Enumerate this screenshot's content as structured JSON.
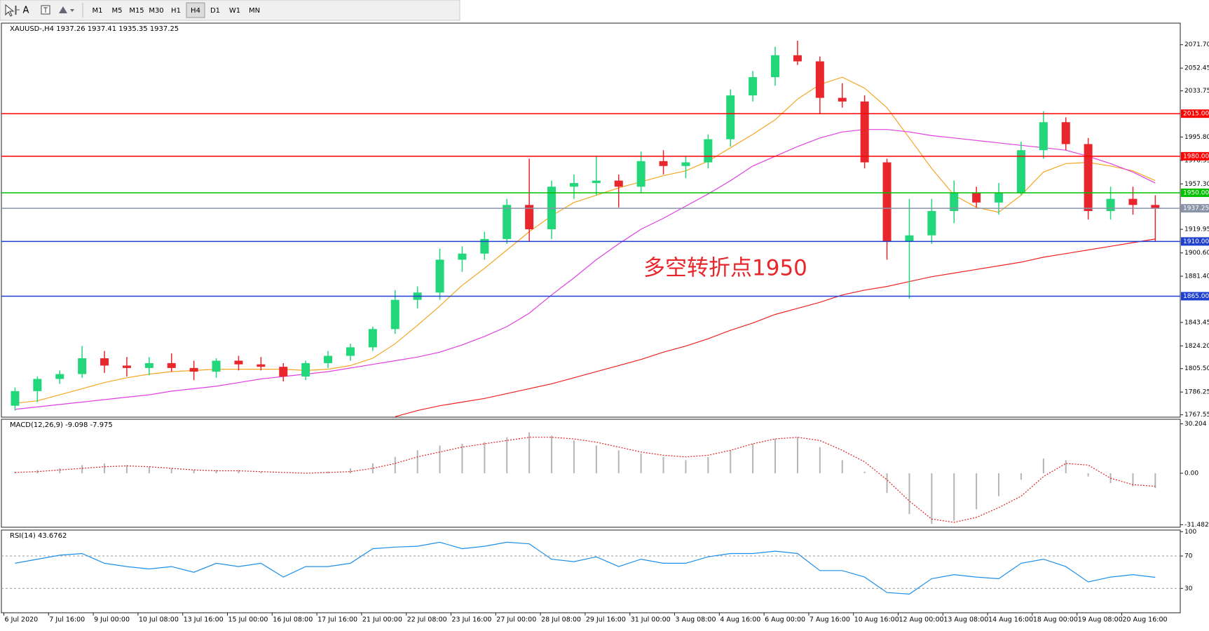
{
  "toolbar": {
    "text_tool": "A",
    "timeframes": [
      "M1",
      "M5",
      "M15",
      "M30",
      "H1",
      "H4",
      "D1",
      "W1",
      "MN"
    ],
    "selected": 5
  },
  "chart_data": [
    {
      "type": "candlestick",
      "title": "XAUUSD-,H4  1937.26 1937.41 1935.35 1937.25",
      "annotation": "多空转折点1950",
      "up_color": "#22d67a",
      "down_color": "#e8262c",
      "categories": [
        "6 Jul 2020",
        null,
        "7 Jul 16:00",
        null,
        "9 Jul 00:00",
        null,
        "10 Jul 08:00",
        null,
        "13 Jul 16:00",
        null,
        "15 Jul 00:00",
        null,
        "16 Jul 08:00",
        null,
        "17 Jul 16:00",
        null,
        "21 Jul 00:00",
        null,
        "22 Jul 08:00",
        null,
        "23 Jul 16:00",
        null,
        "27 Jul 00:00",
        null,
        "28 Jul 08:00",
        null,
        "29 Jul 16:00",
        null,
        "31 Jul 00:00",
        null,
        "3 Aug 08:00",
        null,
        "4 Aug 16:00",
        null,
        "6 Aug 00:00",
        null,
        "7 Aug 16:00",
        null,
        "10 Aug 16:00",
        null,
        "12 Aug 00:00",
        null,
        "13 Aug 08:00",
        null,
        "14 Aug 16:00",
        null,
        "18 Aug 00:00",
        null,
        "19 Aug 08:00",
        null,
        "20 Aug 16:00",
        null
      ],
      "open": [
        1775,
        1787,
        1797,
        1801,
        1814,
        1808,
        1806,
        1810,
        1806,
        1803,
        1812,
        1809,
        1807,
        1799,
        1810,
        1816,
        1823,
        1838,
        1862,
        1868,
        1895,
        1900,
        1912,
        1940,
        1920,
        1955,
        1958,
        1960,
        1955,
        1976,
        1972,
        1975,
        1994,
        2030,
        2045,
        2063,
        2058,
        2028,
        2025,
        1975,
        1910,
        1915,
        1935,
        1950,
        1942,
        1950,
        1985,
        2008,
        1990,
        1935,
        1945,
        1940
      ],
      "high": [
        1790,
        1799,
        1804,
        1824,
        1820,
        1815,
        1815,
        1818,
        1812,
        1814,
        1816,
        1815,
        1810,
        1812,
        1820,
        1826,
        1840,
        1870,
        1873,
        1904,
        1906,
        1918,
        1945,
        1978,
        1960,
        1965,
        1980,
        1965,
        1984,
        1985,
        1980,
        1998,
        2035,
        2050,
        2070,
        2075,
        2062,
        2040,
        2030,
        1978,
        1945,
        1945,
        1960,
        1955,
        1958,
        1992,
        2017,
        2012,
        1995,
        1955,
        1955,
        1948
      ],
      "low": [
        1771,
        1778,
        1793,
        1798,
        1802,
        1799,
        1800,
        1803,
        1796,
        1798,
        1804,
        1804,
        1795,
        1796,
        1806,
        1812,
        1820,
        1834,
        1855,
        1862,
        1885,
        1895,
        1908,
        1910,
        1912,
        1945,
        1948,
        1938,
        1950,
        1965,
        1962,
        1970,
        1988,
        2025,
        2038,
        2055,
        2015,
        2020,
        1970,
        1895,
        1863,
        1908,
        1925,
        1938,
        1932,
        1948,
        1978,
        1985,
        1928,
        1928,
        1932,
        1910
      ],
      "close": [
        1787,
        1797,
        1801,
        1814,
        1808,
        1806,
        1810,
        1806,
        1803,
        1812,
        1809,
        1807,
        1799,
        1810,
        1816,
        1823,
        1838,
        1862,
        1868,
        1895,
        1900,
        1912,
        1940,
        1920,
        1955,
        1958,
        1960,
        1955,
        1976,
        1972,
        1975,
        1994,
        2030,
        2045,
        2063,
        2058,
        2028,
        2025,
        1975,
        1910,
        1915,
        1935,
        1950,
        1942,
        1950,
        1985,
        2008,
        1990,
        1935,
        1945,
        1940,
        1937.25
      ],
      "lines": [
        {
          "color": "#f5a623",
          "values": [
            1777,
            1779,
            1784,
            1789,
            1794,
            1798,
            1801,
            1803,
            1804,
            1805,
            1805,
            1805,
            1805,
            1804,
            1805,
            1808,
            1814,
            1826,
            1841,
            1857,
            1874,
            1888,
            1903,
            1918,
            1931,
            1942,
            1948,
            1954,
            1959,
            1964,
            1968,
            1976,
            1987,
            1998,
            2010,
            2027,
            2039,
            2045,
            2036,
            2020,
            1995,
            1970,
            1948,
            1938,
            1934,
            1948,
            1967,
            1974,
            1975,
            1972,
            1968,
            1960
          ]
        },
        {
          "color": "#e040e0",
          "values": [
            1772,
            1774,
            1776,
            1778,
            1780,
            1782,
            1784,
            1787,
            1789,
            1791,
            1794,
            1797,
            1799,
            1801,
            1803,
            1806,
            1809,
            1812,
            1815,
            1819,
            1825,
            1832,
            1840,
            1851,
            1866,
            1880,
            1895,
            1908,
            1920,
            1929,
            1939,
            1949,
            1960,
            1972,
            1980,
            1988,
            1995,
            2000,
            2002,
            2002,
            2000,
            1997,
            1995,
            1993,
            1991,
            1989,
            1987,
            1985,
            1980,
            1974,
            1967,
            1958
          ]
        },
        {
          "color": "#ee2222",
          "values": [
            null,
            null,
            null,
            null,
            null,
            null,
            null,
            null,
            null,
            null,
            null,
            null,
            null,
            null,
            null,
            null,
            null,
            1766,
            1771,
            1775,
            1778,
            1781,
            1785,
            1789,
            1793,
            1798,
            1803,
            1808,
            1813,
            1819,
            1824,
            1830,
            1837,
            1843,
            1850,
            1855,
            1860,
            1866,
            1870,
            1873,
            1877,
            1881,
            1884,
            1887,
            1890,
            1893,
            1897,
            1900,
            1903,
            1906,
            1909,
            1912
          ]
        }
      ],
      "levels": [
        {
          "value": 2015,
          "label": "2015.00",
          "color": "#ff0000"
        },
        {
          "value": 1980,
          "label": "1980.00",
          "color": "#ff0000"
        },
        {
          "value": 1950,
          "label": "1950.00",
          "color": "#00c000"
        },
        {
          "value": 1937.25,
          "label": "1937.25",
          "color": "#8a94a8"
        },
        {
          "value": 1910,
          "label": "1910.00",
          "color": "#1e3fd0"
        },
        {
          "value": 1865,
          "label": "1865.00",
          "color": "#1e3fd0"
        }
      ],
      "ylim": [
        1765.6,
        2089.4
      ],
      "yticks": [
        {
          "value": 2071.7,
          "label": "2071.70"
        },
        2052.45,
        2033.75,
        {
          "value": 1995.8,
          "label": "1995.80"
        },
        1976.55,
        {
          "value": 1957.3,
          "label": "1957.30"
        },
        1919.95,
        {
          "value": 1900.6,
          "label": "1900.60"
        },
        {
          "value": 1881.4,
          "label": "1881.40"
        },
        1843.45,
        {
          "value": 1824.2,
          "label": "1824.20"
        },
        {
          "value": 1805.5,
          "label": "1805.50"
        },
        1786.25,
        1767.55
      ]
    },
    {
      "type": "macd",
      "title": "MACD(12,26,9) -9.098 -7.975",
      "series": [
        {
          "style": "histogram",
          "color": "#b4b4b4",
          "values": [
            1,
            2,
            3,
            5,
            6,
            5,
            4,
            3,
            2,
            2,
            2,
            1,
            0,
            0,
            1,
            3,
            6,
            10,
            14,
            17,
            18,
            19,
            22,
            25,
            23,
            20,
            17,
            14,
            12,
            10,
            8,
            10,
            14,
            18,
            21,
            22,
            16,
            8,
            1,
            -12,
            -25,
            -31,
            -29,
            -22,
            -14,
            -4,
            9,
            8,
            -2,
            -6,
            -8,
            -9.098
          ]
        },
        {
          "style": "dotted",
          "color": "#e02020",
          "values": [
            0.5,
            1,
            2,
            3,
            4,
            4.5,
            4,
            3,
            2,
            1.5,
            1.5,
            1,
            0.5,
            0,
            0.5,
            1,
            3,
            6,
            10,
            13,
            16,
            18,
            20,
            22,
            22,
            21,
            19,
            16,
            13,
            11,
            10,
            11,
            14,
            18,
            21,
            22,
            20,
            14,
            7,
            -4,
            -17,
            -28,
            -30,
            -27,
            -21,
            -14,
            -2,
            6,
            5,
            -3,
            -7,
            -7.975
          ]
        }
      ],
      "ylim": [
        -33,
        33
      ],
      "yticks": [
        30.204,
        {
          "value": 0,
          "label": "0.00"
        },
        -31.482
      ]
    },
    {
      "type": "line",
      "title": "RSI(14) 43.6762",
      "series": [
        {
          "color": "#1e8fe8",
          "values": [
            61,
            66,
            71,
            73,
            61,
            57,
            54,
            57,
            50,
            61,
            57,
            61,
            44,
            57,
            57,
            61,
            79,
            81,
            82,
            87,
            79,
            82,
            87,
            85,
            66,
            63,
            69,
            57,
            66,
            61,
            61,
            69,
            73,
            73,
            76,
            73,
            52,
            52,
            44,
            25,
            23,
            42,
            47,
            44,
            42,
            61,
            66,
            57,
            38,
            44,
            47,
            43.6762
          ]
        }
      ],
      "levels": [
        70,
        30
      ],
      "ylim": [
        0,
        102
      ],
      "yticks": [
        100,
        70,
        30
      ]
    }
  ]
}
